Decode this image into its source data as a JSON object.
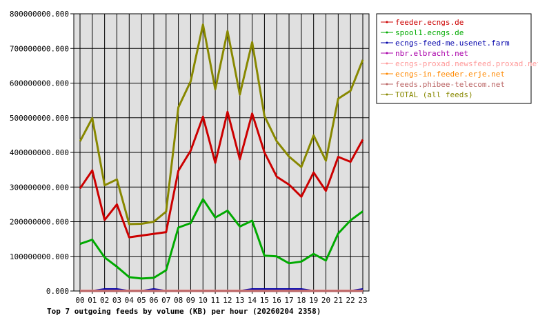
{
  "chart_data": {
    "type": "line",
    "title": "Top 7 outgoing feeds by volume (KB) per hour (20260204 2358)",
    "categories": [
      "00",
      "01",
      "02",
      "03",
      "04",
      "05",
      "06",
      "07",
      "08",
      "09",
      "10",
      "11",
      "12",
      "13",
      "14",
      "15",
      "16",
      "17",
      "18",
      "19",
      "20",
      "21",
      "22",
      "23"
    ],
    "y_ticks": [
      "0.000",
      "100000000.000",
      "200000000.000",
      "300000000.000",
      "400000000.000",
      "500000000.000",
      "600000000.000",
      "700000000.000",
      "800000000.000"
    ],
    "ylim": [
      0,
      800000000
    ],
    "grid": true,
    "legend_position": "right",
    "series": [
      {
        "name": "feeder.ecngs.de",
        "color": "#cc0000",
        "values": [
          296000000,
          348000000,
          205000000,
          250000000,
          155000000,
          160000000,
          165000000,
          170000000,
          347000000,
          405000000,
          503000000,
          370000000,
          517000000,
          380000000,
          512000000,
          400000000,
          330000000,
          307000000,
          272000000,
          342000000,
          289000000,
          387000000,
          373000000,
          437000000
        ]
      },
      {
        "name": "spool1.ecngs.de",
        "color": "#00aa00",
        "values": [
          136000000,
          148000000,
          97000000,
          70000000,
          40000000,
          36000000,
          38000000,
          60000000,
          183000000,
          196000000,
          265000000,
          212000000,
          232000000,
          186000000,
          203000000,
          102000000,
          100000000,
          80000000,
          85000000,
          107000000,
          88000000,
          166000000,
          204000000,
          230000000
        ]
      },
      {
        "name": "ecngs-feed-me.usenet.farm",
        "color": "#0000aa",
        "values": [
          0,
          0,
          5000000,
          5000000,
          0,
          0,
          5000000,
          0,
          0,
          0,
          0,
          0,
          0,
          0,
          5000000,
          5000000,
          5000000,
          5000000,
          5000000,
          0,
          0,
          0,
          0,
          5000000
        ]
      },
      {
        "name": "nbr.elbracht.net",
        "color": "#aa00aa",
        "values": [
          0,
          0,
          0,
          0,
          0,
          0,
          0,
          0,
          0,
          0,
          0,
          0,
          0,
          0,
          0,
          0,
          0,
          0,
          0,
          0,
          0,
          0,
          0,
          0
        ]
      },
      {
        "name": "ecngs-proxad.newsfeed.proxad.net",
        "color": "#ff9999",
        "values": [
          1000000,
          1000000,
          1000000,
          1000000,
          1000000,
          1000000,
          1000000,
          1000000,
          1000000,
          1000000,
          1000000,
          1000000,
          1000000,
          1000000,
          1000000,
          1000000,
          1000000,
          1000000,
          1000000,
          1000000,
          1000000,
          1000000,
          1000000,
          1000000
        ]
      },
      {
        "name": "ecngs-in.feeder.erje.net",
        "color": "#ff8800",
        "values": [
          0,
          0,
          0,
          0,
          0,
          0,
          0,
          0,
          0,
          0,
          0,
          0,
          0,
          0,
          0,
          0,
          0,
          0,
          0,
          0,
          0,
          0,
          0,
          0
        ]
      },
      {
        "name": "feeds.phibee-telecom.net",
        "color": "#bb6666",
        "values": [
          0,
          0,
          0,
          0,
          0,
          0,
          0,
          0,
          0,
          0,
          0,
          0,
          0,
          0,
          0,
          0,
          0,
          0,
          0,
          0,
          0,
          0,
          0,
          0
        ]
      },
      {
        "name": "TOTAL (all feeds)",
        "color": "#888800",
        "values": [
          432000000,
          499000000,
          305000000,
          322000000,
          193000000,
          194000000,
          200000000,
          229000000,
          530000000,
          605000000,
          769000000,
          582000000,
          750000000,
          567000000,
          718000000,
          505000000,
          432000000,
          388000000,
          358000000,
          449000000,
          376000000,
          555000000,
          578000000,
          667000000
        ]
      }
    ]
  }
}
